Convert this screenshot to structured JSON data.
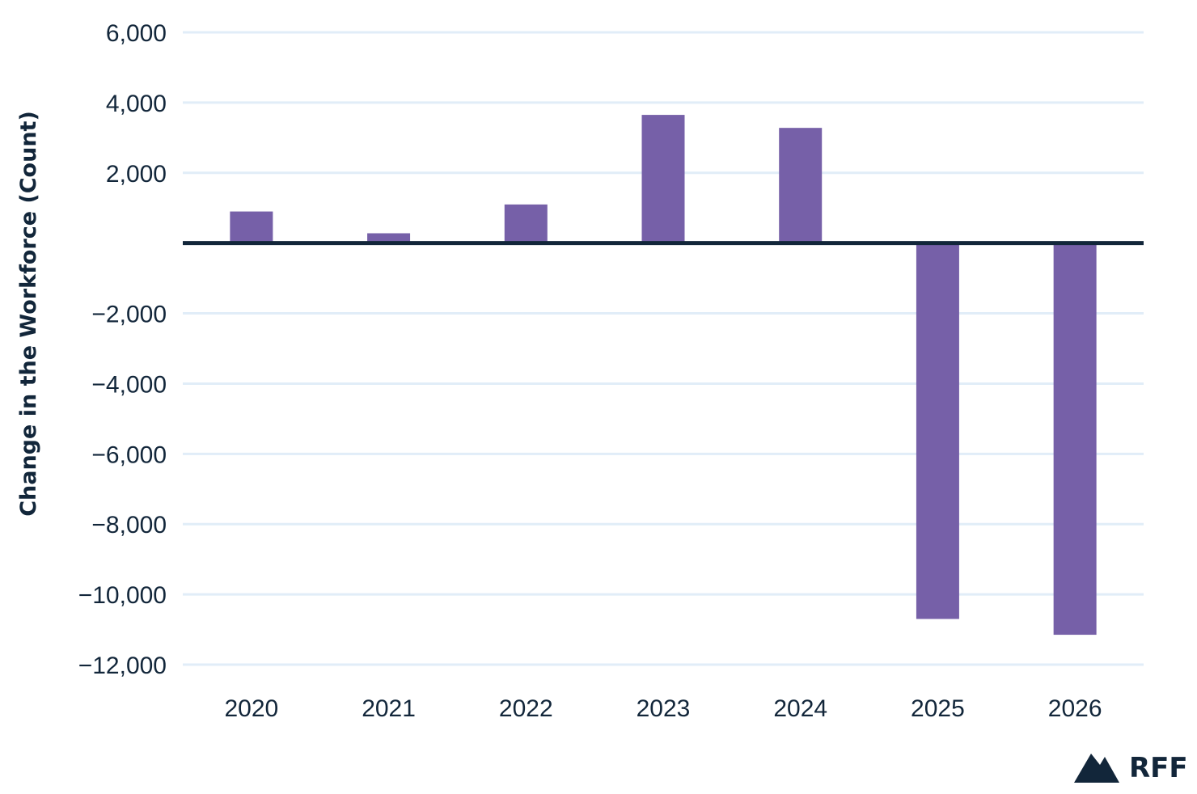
{
  "chart_data": {
    "type": "bar",
    "categories": [
      "2020",
      "2021",
      "2022",
      "2023",
      "2024",
      "2025",
      "2026"
    ],
    "values": [
      900,
      280,
      1100,
      3650,
      3280,
      -10700,
      -11150
    ],
    "title": "",
    "xlabel": "",
    "ylabel": "Change in the Workforce (Count)",
    "ylim": [
      -12000,
      6000
    ],
    "yticks": [
      6000,
      4000,
      2000,
      -2000,
      -4000,
      -6000,
      -8000,
      -10000,
      -12000
    ],
    "ytick_labels": [
      "6,000",
      "4,000",
      "2,000",
      "−2,000",
      "−4,000",
      "−6,000",
      "−8,000",
      "−10,000",
      "−12,000"
    ],
    "grid": true,
    "legend": "none"
  },
  "colors": {
    "bar": "#7660a8",
    "gridline": "#e1edf8",
    "zero_line": "#12263a",
    "text": "#12263a"
  },
  "branding": {
    "logo_text": "RFF",
    "logo_icon": "mountain-logo-icon"
  }
}
